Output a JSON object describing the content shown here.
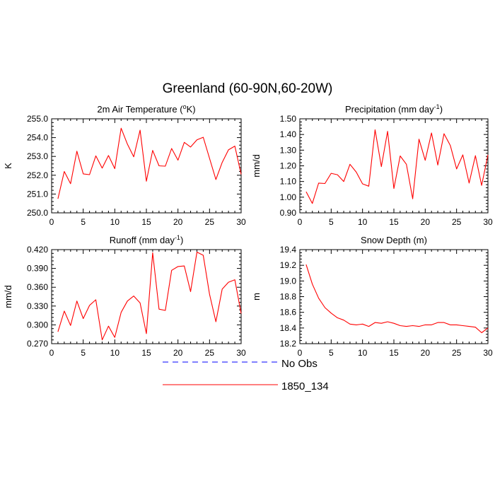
{
  "figure": {
    "title": "Greenland (60-90N,60-20W)"
  },
  "colors": {
    "model": "#ff0000",
    "obs": "#0000ff",
    "axis": "#000000"
  },
  "legend": {
    "entries": [
      {
        "label": "No Obs",
        "style": "dashed",
        "color": "#0000ff"
      },
      {
        "label": "1850_134",
        "style": "solid",
        "color": "#ff0000"
      }
    ]
  },
  "chart_data": [
    {
      "type": "line",
      "title": "2m Air Temperature (°K)",
      "title_parts": [
        "2m Air Temperature (",
        "o",
        "K)"
      ],
      "xlabel": "",
      "ylabel": "K",
      "xlim": [
        0,
        30
      ],
      "ylim": [
        250.0,
        255.0
      ],
      "xticks": [
        0,
        5,
        10,
        15,
        20,
        25,
        30
      ],
      "yticks": [
        250.0,
        251.0,
        252.0,
        253.0,
        254.0,
        255.0
      ],
      "ytick_labels": [
        "250.0",
        "251.0",
        "252.0",
        "253.0",
        "254.0",
        "255.0"
      ],
      "x": [
        1,
        2,
        3,
        4,
        5,
        6,
        7,
        8,
        9,
        10,
        11,
        12,
        13,
        14,
        15,
        16,
        17,
        18,
        19,
        20,
        21,
        22,
        23,
        24,
        25,
        26,
        27,
        28,
        29,
        30
      ],
      "series": [
        {
          "name": "1850_134",
          "values": [
            250.75,
            252.2,
            251.55,
            253.28,
            252.07,
            252.03,
            253.03,
            252.38,
            253.05,
            252.35,
            254.5,
            253.65,
            252.98,
            254.4,
            251.68,
            253.32,
            252.5,
            252.48,
            253.42,
            252.8,
            253.75,
            253.5,
            253.88,
            254.02,
            252.9,
            251.77,
            252.68,
            253.35,
            253.55,
            252.05
          ]
        }
      ]
    },
    {
      "type": "line",
      "title": "Precipitation (mm day-1)",
      "title_parts": [
        "Precipitation (mm day",
        "-1",
        ")"
      ],
      "xlabel": "",
      "ylabel": "mm/d",
      "xlim": [
        0,
        30
      ],
      "ylim": [
        0.9,
        1.5
      ],
      "xticks": [
        0,
        5,
        10,
        15,
        20,
        25,
        30
      ],
      "yticks": [
        0.9,
        1.0,
        1.1,
        1.2,
        1.3,
        1.4,
        1.5
      ],
      "ytick_labels": [
        "0.90",
        "1.00",
        "1.10",
        "1.20",
        "1.30",
        "1.40",
        "1.50"
      ],
      "x": [
        1,
        2,
        3,
        4,
        5,
        6,
        7,
        8,
        9,
        10,
        11,
        12,
        13,
        14,
        15,
        16,
        17,
        18,
        19,
        20,
        21,
        22,
        23,
        24,
        25,
        26,
        27,
        28,
        29,
        30
      ],
      "series": [
        {
          "name": "1850_134",
          "values": [
            1.035,
            0.96,
            1.09,
            1.087,
            1.152,
            1.143,
            1.1,
            1.21,
            1.16,
            1.085,
            1.07,
            1.43,
            1.195,
            1.42,
            1.055,
            1.263,
            1.21,
            0.99,
            1.37,
            1.235,
            1.41,
            1.205,
            1.405,
            1.33,
            1.18,
            1.27,
            1.09,
            1.265,
            1.075,
            1.27
          ]
        }
      ]
    },
    {
      "type": "line",
      "title": "Runoff (mm day-1)",
      "title_parts": [
        "Runoff (mm day",
        "-1",
        ")"
      ],
      "xlabel": "",
      "ylabel": "mm/d",
      "xlim": [
        0,
        30
      ],
      "ylim": [
        0.27,
        0.42
      ],
      "xticks": [
        0,
        5,
        10,
        15,
        20,
        25,
        30
      ],
      "yticks": [
        0.27,
        0.3,
        0.33,
        0.36,
        0.39,
        0.42
      ],
      "ytick_labels": [
        "0.270",
        "0.300",
        "0.330",
        "0.360",
        "0.390",
        "0.420"
      ],
      "x": [
        1,
        2,
        3,
        4,
        5,
        6,
        7,
        8,
        9,
        10,
        11,
        12,
        13,
        14,
        15,
        16,
        17,
        18,
        19,
        20,
        21,
        22,
        23,
        24,
        25,
        26,
        27,
        28,
        29,
        30
      ],
      "series": [
        {
          "name": "1850_134",
          "values": [
            0.289,
            0.322,
            0.299,
            0.338,
            0.31,
            0.331,
            0.34,
            0.276,
            0.298,
            0.28,
            0.32,
            0.338,
            0.346,
            0.335,
            0.286,
            0.415,
            0.325,
            0.323,
            0.387,
            0.393,
            0.394,
            0.353,
            0.416,
            0.411,
            0.349,
            0.305,
            0.357,
            0.368,
            0.372,
            0.318
          ]
        }
      ]
    },
    {
      "type": "line",
      "title": "Snow Depth (m)",
      "xlabel": "",
      "ylabel": "m",
      "xlim": [
        0,
        30
      ],
      "ylim": [
        18.2,
        19.4
      ],
      "xticks": [
        0,
        5,
        10,
        15,
        20,
        25,
        30
      ],
      "yticks": [
        18.2,
        18.4,
        18.6,
        18.8,
        19.0,
        19.2,
        19.4
      ],
      "ytick_labels": [
        "18.2",
        "18.4",
        "18.6",
        "18.8",
        "19.0",
        "19.2",
        "19.4"
      ],
      "x": [
        1,
        2,
        3,
        4,
        5,
        6,
        7,
        8,
        9,
        10,
        11,
        12,
        13,
        14,
        15,
        16,
        17,
        18,
        19,
        20,
        21,
        22,
        23,
        24,
        25,
        26,
        27,
        28,
        29,
        30
      ],
      "series": [
        {
          "name": "1850_134",
          "values": [
            19.21,
            18.96,
            18.78,
            18.66,
            18.59,
            18.53,
            18.5,
            18.45,
            18.44,
            18.45,
            18.42,
            18.47,
            18.46,
            18.48,
            18.46,
            18.43,
            18.42,
            18.43,
            18.42,
            18.44,
            18.44,
            18.47,
            18.47,
            18.44,
            18.44,
            18.43,
            18.42,
            18.41,
            18.34,
            18.4
          ]
        }
      ]
    }
  ]
}
